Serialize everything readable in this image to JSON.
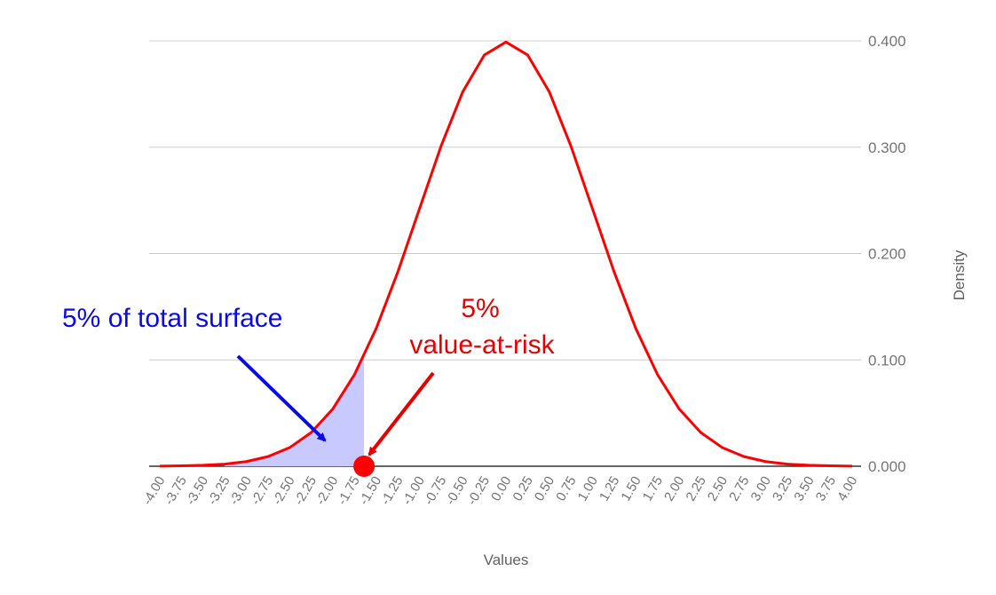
{
  "chart_data": {
    "type": "area",
    "title": "",
    "xlabel": "Values",
    "ylabel": "Density",
    "x": [
      -4.0,
      -3.75,
      -3.5,
      -3.25,
      -3.0,
      -2.75,
      -2.5,
      -2.25,
      -2.0,
      -1.75,
      -1.5,
      -1.25,
      -1.0,
      -0.75,
      -0.5,
      -0.25,
      0.0,
      0.25,
      0.5,
      0.75,
      1.0,
      1.25,
      1.5,
      1.75,
      2.0,
      2.25,
      2.5,
      2.75,
      3.0,
      3.25,
      3.5,
      3.75,
      4.0
    ],
    "x_tick_labels": [
      "-4.00",
      "-3.75",
      "-3.50",
      "-3.25",
      "-3.00",
      "-2.75",
      "-2.50",
      "-2.25",
      "-2.00",
      "-1.75",
      "-1.50",
      "-1.25",
      "-1.00",
      "-0.75",
      "-0.50",
      "-0.25",
      "0.00",
      "0.25",
      "0.50",
      "0.75",
      "1.00",
      "1.25",
      "1.50",
      "1.75",
      "2.00",
      "2.25",
      "2.50",
      "2.75",
      "3.00",
      "3.25",
      "3.50",
      "3.75",
      "4.00"
    ],
    "series": [
      {
        "color": "#ff0000",
        "values": [
          0.0001,
          0.0004,
          0.0009,
          0.002,
          0.0044,
          0.0091,
          0.0175,
          0.0317,
          0.054,
          0.0863,
          0.1295,
          0.1826,
          0.242,
          0.3011,
          0.3521,
          0.3867,
          0.3989,
          0.3867,
          0.3521,
          0.3011,
          0.242,
          0.1826,
          0.1295,
          0.0863,
          0.054,
          0.0317,
          0.0175,
          0.0091,
          0.0044,
          0.002,
          0.0009,
          0.0004,
          0.0001
        ]
      }
    ],
    "shaded_region": {
      "x_from": -3.25,
      "x_to": -1.64,
      "color": "#c8caff"
    },
    "var_point": {
      "x": -1.64,
      "y": 0.0,
      "color": "#ff0000"
    },
    "ylim": [
      0,
      0.4
    ],
    "y_ticks": [
      0.0,
      0.1,
      0.2,
      0.3,
      0.4
    ],
    "y_tick_labels": [
      "0.000",
      "0.100",
      "0.200",
      "0.300",
      "0.400"
    ],
    "y_axis_side": "right",
    "grid": true,
    "annotations": {
      "surface": {
        "text": "5% of total surface",
        "color": "#0a0ae6"
      },
      "var_line1": {
        "text": "5%",
        "color": "#e60000"
      },
      "var_line2": {
        "text": "value-at-risk",
        "color": "#e60000"
      }
    }
  }
}
